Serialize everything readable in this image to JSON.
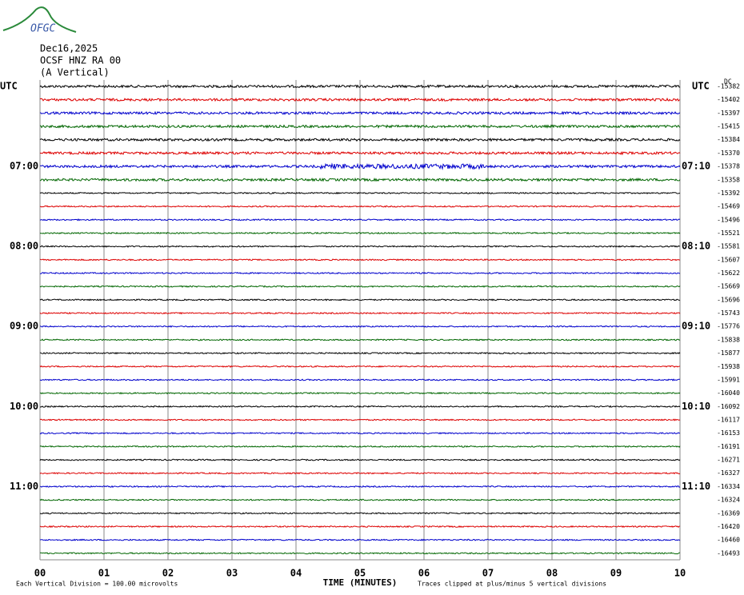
{
  "chart_data": {
    "type": "helicorder",
    "logo": "OFGC",
    "title": "Dec16,2025",
    "station": "OCSF HNZ RA 00",
    "component": "(A Vertical)",
    "dc_label": "DC",
    "x_label": "TIME (MINUTES)",
    "scale_note": "Each Vertical Division =  100.00 microvolts",
    "clip_note": "Traces clipped at plus/minus 5 vertical divisions",
    "xlim": [
      0,
      10
    ],
    "xticks": [
      {
        "value": 0,
        "label": "00"
      },
      {
        "value": 1,
        "label": "01"
      },
      {
        "value": 2,
        "label": "02"
      },
      {
        "value": 3,
        "label": "03"
      },
      {
        "value": 4,
        "label": "04"
      },
      {
        "value": 5,
        "label": "05"
      },
      {
        "value": 6,
        "label": "06"
      },
      {
        "value": 7,
        "label": "07"
      },
      {
        "value": 8,
        "label": "08"
      },
      {
        "value": 9,
        "label": "09"
      },
      10
    ],
    "colors": [
      "#000000",
      "#dd0000",
      "#0000cc",
      "#006600"
    ],
    "left_labels": [
      "UTC",
      null,
      null,
      null,
      null,
      null,
      "07:00",
      null,
      null,
      null,
      null,
      null,
      "08:00",
      null,
      null,
      null,
      null,
      null,
      "09:00",
      null,
      null,
      null,
      null,
      null,
      "10:00",
      null,
      null,
      null,
      null,
      null,
      "11:00",
      null,
      null,
      null,
      null,
      null
    ],
    "right_labels": [
      "UTC",
      null,
      null,
      null,
      null,
      null,
      "07:10",
      null,
      null,
      null,
      null,
      null,
      "08:10",
      null,
      null,
      null,
      null,
      null,
      "09:10",
      null,
      null,
      null,
      null,
      null,
      "10:10",
      null,
      null,
      null,
      null,
      null,
      "11:10",
      null,
      null,
      null,
      null,
      null
    ],
    "offsets": [
      -15382,
      -15402,
      -15397,
      -15415,
      -15384,
      -15370,
      -15378,
      -15358,
      -15392,
      -15469,
      -15496,
      -15521,
      -15581,
      -15607,
      -15622,
      -15669,
      -15696,
      -15743,
      -15776,
      -15838,
      -15877,
      -15938,
      -15991,
      -16040,
      -16092,
      -16117,
      -16153,
      -16191,
      -16271,
      -16327,
      -16334,
      -16324,
      -16369,
      -16420,
      -16460,
      -16493
    ]
  }
}
